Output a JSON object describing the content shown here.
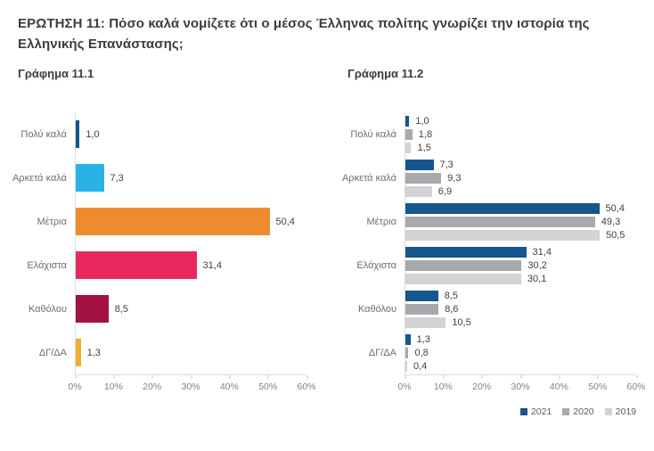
{
  "header": {
    "title": "ΕΡΩΤΗΣΗ 11: Πόσο καλά νομίζετε ότι ο μέσος Έλληνας πολίτης γνωρίζει την ιστορία της Ελληνικής Επανάστασης;"
  },
  "chart_data": [
    {
      "type": "bar",
      "orientation": "horizontal",
      "title": "Γράφημα 11.1",
      "categories": [
        "Πολύ καλά",
        "Αρκετά καλά",
        "Μέτρια",
        "Ελάχιστα",
        "Καθόλου",
        "ΔΓ/ΔΑ"
      ],
      "values": [
        1.0,
        7.3,
        50.4,
        31.4,
        8.5,
        1.3
      ],
      "value_labels": [
        "1,0",
        "7,3",
        "50,4",
        "31,4",
        "8,5",
        "1,3"
      ],
      "bar_colors": [
        "#15568d",
        "#29b2e4",
        "#ee8b2d",
        "#e9295e",
        "#a31240",
        "#f0b02e"
      ],
      "x_ticks": [
        "0%",
        "10%",
        "20%",
        "30%",
        "40%",
        "50%",
        "60%"
      ],
      "xlim": [
        0,
        60
      ],
      "grid": false,
      "legend_position": "none"
    },
    {
      "type": "bar",
      "orientation": "horizontal",
      "title": "Γράφημα 11.2",
      "categories": [
        "Πολύ καλά",
        "Αρκετά καλά",
        "Μέτρια",
        "Ελάχιστα",
        "Καθόλου",
        "ΔΓ/ΔΑ"
      ],
      "series": [
        {
          "name": "2021",
          "color": "#15568d",
          "values": [
            1.0,
            7.3,
            50.4,
            31.4,
            8.5,
            1.3
          ],
          "value_labels": [
            "1,0",
            "7,3",
            "50,4",
            "31,4",
            "8,5",
            "1,3"
          ]
        },
        {
          "name": "2020",
          "color": "#a7a9ac",
          "values": [
            1.8,
            9.3,
            49.3,
            30.2,
            8.6,
            0.8
          ],
          "value_labels": [
            "1,8",
            "9,3",
            "49,3",
            "30,2",
            "8,6",
            "0,8"
          ]
        },
        {
          "name": "2019",
          "color": "#d1d3d4",
          "values": [
            1.5,
            6.9,
            50.5,
            30.1,
            10.5,
            0.4
          ],
          "value_labels": [
            "1,5",
            "6,9",
            "50,5",
            "30,1",
            "10,5",
            "0,4"
          ]
        }
      ],
      "x_ticks": [
        "0%",
        "10%",
        "20%",
        "30%",
        "40%",
        "50%",
        "60%"
      ],
      "xlim": [
        0,
        60
      ],
      "grid": false,
      "legend_position": "bottom-right"
    }
  ],
  "colors": {
    "title_text": "#3d3c3b",
    "category_label": "#6d6e71",
    "value_label": "#414042",
    "axis_label": "#808285",
    "axis_line": "#dcdddd",
    "background": "#ffffff"
  }
}
